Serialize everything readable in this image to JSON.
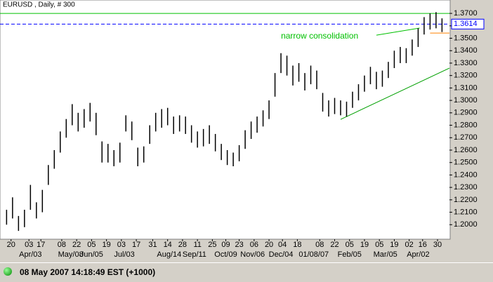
{
  "chart_data": {
    "type": "ohlc",
    "title": "EURUSD , Daily, # 300",
    "color": "#000000",
    "xlim": [
      0,
      300
    ],
    "ylim": [
      1.19,
      1.374
    ],
    "x": [
      3,
      7,
      11,
      15,
      19,
      23,
      27,
      31,
      35,
      39,
      43,
      47,
      51,
      55,
      59,
      63,
      67,
      71,
      75,
      79,
      83,
      87,
      91,
      95,
      99,
      103,
      107,
      111,
      115,
      119,
      123,
      127,
      131,
      135,
      139,
      143,
      147,
      151,
      155,
      159,
      163,
      167,
      171,
      175,
      179,
      183,
      187,
      191,
      195,
      199,
      203,
      207,
      211,
      215,
      219,
      223,
      227,
      231,
      235,
      239,
      243,
      247,
      251,
      255,
      259,
      263,
      267,
      271,
      275,
      279,
      283,
      287,
      291,
      295
    ],
    "high": [
      1.212,
      1.222,
      1.207,
      1.212,
      1.232,
      1.218,
      1.228,
      1.248,
      1.26,
      1.275,
      1.285,
      1.297,
      1.29,
      1.293,
      1.298,
      1.29,
      1.267,
      1.265,
      1.26,
      1.266,
      1.288,
      1.283,
      1.262,
      1.263,
      1.28,
      1.29,
      1.293,
      1.294,
      1.287,
      1.288,
      1.287,
      1.28,
      1.275,
      1.277,
      1.28,
      1.273,
      1.265,
      1.26,
      1.258,
      1.264,
      1.276,
      1.283,
      1.287,
      1.292,
      1.3,
      1.322,
      1.338,
      1.336,
      1.328,
      1.33,
      1.322,
      1.328,
      1.324,
      1.306,
      1.3,
      1.302,
      1.3,
      1.299,
      1.307,
      1.313,
      1.32,
      1.327,
      1.323,
      1.324,
      1.331,
      1.34,
      1.343,
      1.342,
      1.349,
      1.358,
      1.367,
      1.37,
      1.371,
      1.366
    ],
    "low": [
      1.2,
      1.205,
      1.195,
      1.198,
      1.212,
      1.205,
      1.21,
      1.232,
      1.245,
      1.258,
      1.27,
      1.28,
      1.275,
      1.278,
      1.283,
      1.272,
      1.25,
      1.25,
      1.247,
      1.25,
      1.275,
      1.268,
      1.247,
      1.25,
      1.265,
      1.275,
      1.278,
      1.28,
      1.273,
      1.275,
      1.273,
      1.266,
      1.262,
      1.263,
      1.265,
      1.259,
      1.252,
      1.248,
      1.247,
      1.251,
      1.261,
      1.269,
      1.274,
      1.279,
      1.285,
      1.303,
      1.322,
      1.32,
      1.312,
      1.315,
      1.308,
      1.313,
      1.309,
      1.291,
      1.287,
      1.289,
      1.288,
      1.287,
      1.294,
      1.3,
      1.307,
      1.313,
      1.309,
      1.311,
      1.318,
      1.326,
      1.33,
      1.33,
      1.336,
      1.343,
      1.353,
      1.357,
      1.358,
      1.355
    ],
    "yticks": [
      {
        "value": 1.2,
        "label": "1.2000"
      },
      {
        "value": 1.21,
        "label": "1.2100"
      },
      {
        "value": 1.22,
        "label": "1.2200"
      },
      {
        "value": 1.23,
        "label": "1.2300"
      },
      {
        "value": 1.24,
        "label": "1.2400"
      },
      {
        "value": 1.25,
        "label": "1.2500"
      },
      {
        "value": 1.26,
        "label": "1.2600"
      },
      {
        "value": 1.27,
        "label": "1.2700"
      },
      {
        "value": 1.28,
        "label": "1.2800"
      },
      {
        "value": 1.29,
        "label": "1.2900"
      },
      {
        "value": 1.3,
        "label": "1.3000"
      },
      {
        "value": 1.31,
        "label": "1.3100"
      },
      {
        "value": 1.32,
        "label": "1.3200"
      },
      {
        "value": 1.33,
        "label": "1.3300"
      },
      {
        "value": 1.34,
        "label": "1.3400"
      },
      {
        "value": 1.35,
        "label": "1.3500"
      },
      {
        "value": 1.36,
        "label": "1.3600"
      },
      {
        "value": 1.37,
        "label": "1.3700"
      }
    ],
    "xticks": [
      {
        "value": 6,
        "label": "20"
      },
      {
        "value": 18,
        "label": "03"
      },
      {
        "value": 26,
        "label": "17"
      },
      {
        "value": 40,
        "label": "08"
      },
      {
        "value": 50,
        "label": "22"
      },
      {
        "value": 60,
        "label": "05"
      },
      {
        "value": 70,
        "label": "19"
      },
      {
        "value": 80,
        "label": "03"
      },
      {
        "value": 90,
        "label": "17"
      },
      {
        "value": 101,
        "label": "31"
      },
      {
        "value": 111,
        "label": "14"
      },
      {
        "value": 121,
        "label": "28"
      },
      {
        "value": 131,
        "label": "11"
      },
      {
        "value": 141,
        "label": "25"
      },
      {
        "value": 150,
        "label": "09"
      },
      {
        "value": 159,
        "label": "23"
      },
      {
        "value": 169,
        "label": "06"
      },
      {
        "value": 179,
        "label": "20"
      },
      {
        "value": 188,
        "label": "04"
      },
      {
        "value": 198,
        "label": "18"
      },
      {
        "value": 213,
        "label": "08"
      },
      {
        "value": 223,
        "label": "22"
      },
      {
        "value": 233,
        "label": "05"
      },
      {
        "value": 243,
        "label": "19"
      },
      {
        "value": 253,
        "label": "05"
      },
      {
        "value": 263,
        "label": "19"
      },
      {
        "value": 273,
        "label": "02"
      },
      {
        "value": 282,
        "label": "16"
      },
      {
        "value": 292,
        "label": "30"
      }
    ],
    "xticks2": [
      {
        "value": 19,
        "label": "Apr/03"
      },
      {
        "value": 46,
        "label": "May/08"
      },
      {
        "value": 60,
        "label": "Jun/05"
      },
      {
        "value": 82,
        "label": "Jul/03"
      },
      {
        "value": 112,
        "label": "Aug/14"
      },
      {
        "value": 129,
        "label": "Sep/11"
      },
      {
        "value": 150,
        "label": "Oct/09"
      },
      {
        "value": 168,
        "label": "Nov/06"
      },
      {
        "value": 187,
        "label": "Dec/04"
      },
      {
        "value": 209,
        "label": "01/08/07"
      },
      {
        "value": 233,
        "label": "Feb/05"
      },
      {
        "value": 257,
        "label": "Mar/05"
      },
      {
        "value": 279,
        "label": "Apr/02"
      }
    ],
    "hlines": [
      {
        "value": 1.37,
        "color": "#00c000"
      },
      {
        "value": 1.3614,
        "label": "1.3614",
        "color": "#0000ff",
        "dashed": true
      }
    ],
    "segments": [
      {
        "x": [
          227,
          300
        ],
        "y": [
          1.2847,
          1.326
        ],
        "color": "#00a000"
      },
      {
        "x": [
          251,
          280
        ],
        "y": [
          1.3525,
          1.3582
        ],
        "color": "#00c000"
      },
      {
        "x": [
          287,
          300
        ],
        "y": [
          1.3542,
          1.3542
        ],
        "color": "#ff8000"
      }
    ],
    "annotation": {
      "text": "narrow consolidation",
      "x": 187,
      "y": 1.3514,
      "color": "#00c000"
    }
  },
  "status": "08 May 2007 14:18:49  EST (+1000)"
}
